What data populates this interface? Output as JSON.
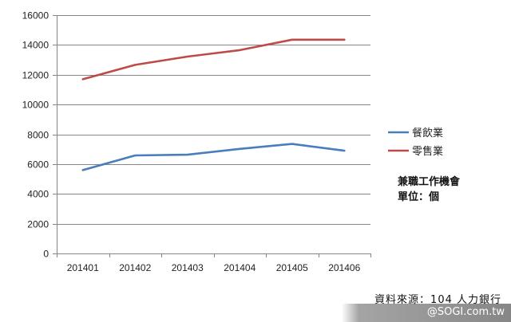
{
  "chart_data": {
    "type": "line",
    "categories": [
      "201401",
      "201402",
      "201403",
      "201404",
      "201405",
      "201406"
    ],
    "ylim": [
      0,
      16000
    ],
    "yticks": [
      0,
      2000,
      4000,
      6000,
      8000,
      10000,
      12000,
      14000,
      16000
    ],
    "grid": "horizontal",
    "legend_position": "right",
    "series": [
      {
        "name": "餐飲業",
        "color": "#4a7ebb",
        "values": [
          5600,
          6580,
          6630,
          7020,
          7350,
          6900
        ]
      },
      {
        "name": "零售業",
        "color": "#be4b48",
        "values": [
          11700,
          12660,
          13220,
          13650,
          14350,
          14350
        ]
      }
    ]
  },
  "note": {
    "line1": "兼職工作機會",
    "line2": "單位：個"
  },
  "source": "資料來源：104 人力銀行",
  "watermark": "@SOGI.com.tw"
}
